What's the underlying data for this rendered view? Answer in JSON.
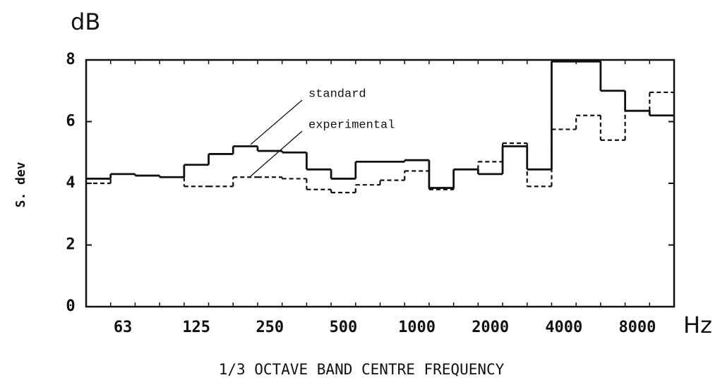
{
  "chart_data": {
    "type": "step",
    "unit_label": "dB",
    "y_label": "S. dev",
    "x_unit": "Hz",
    "x_label": "1/3 OCTAVE BAND CENTRE FREQUENCY",
    "annotations": [
      "standard",
      "experimental"
    ],
    "categories": [
      null,
      "63",
      null,
      null,
      "125",
      null,
      null,
      "250",
      null,
      null,
      "500",
      null,
      null,
      "1000",
      null,
      null,
      "2000",
      null,
      null,
      "4000",
      null,
      null,
      "8000",
      null
    ],
    "series": [
      {
        "name": "standard",
        "color": "#111111",
        "style": "solid",
        "values": [
          4.15,
          4.3,
          4.25,
          4.2,
          4.6,
          4.95,
          5.2,
          5.05,
          5.0,
          4.45,
          4.15,
          4.7,
          4.7,
          4.75,
          3.85,
          4.45,
          4.3,
          5.2,
          4.45,
          7.95,
          7.95,
          7.0,
          6.35,
          6.2
        ]
      },
      {
        "name": "experimental",
        "color": "#111111",
        "style": "dashed",
        "values": [
          4.0,
          4.3,
          4.25,
          4.2,
          3.9,
          3.9,
          4.2,
          4.2,
          4.15,
          3.8,
          3.7,
          3.95,
          4.1,
          4.4,
          3.8,
          4.45,
          4.7,
          5.3,
          3.9,
          5.75,
          6.2,
          5.4,
          6.35,
          6.95
        ]
      }
    ],
    "ylim": [
      0,
      8
    ],
    "yticks": [
      0,
      2,
      4,
      6,
      8
    ]
  }
}
